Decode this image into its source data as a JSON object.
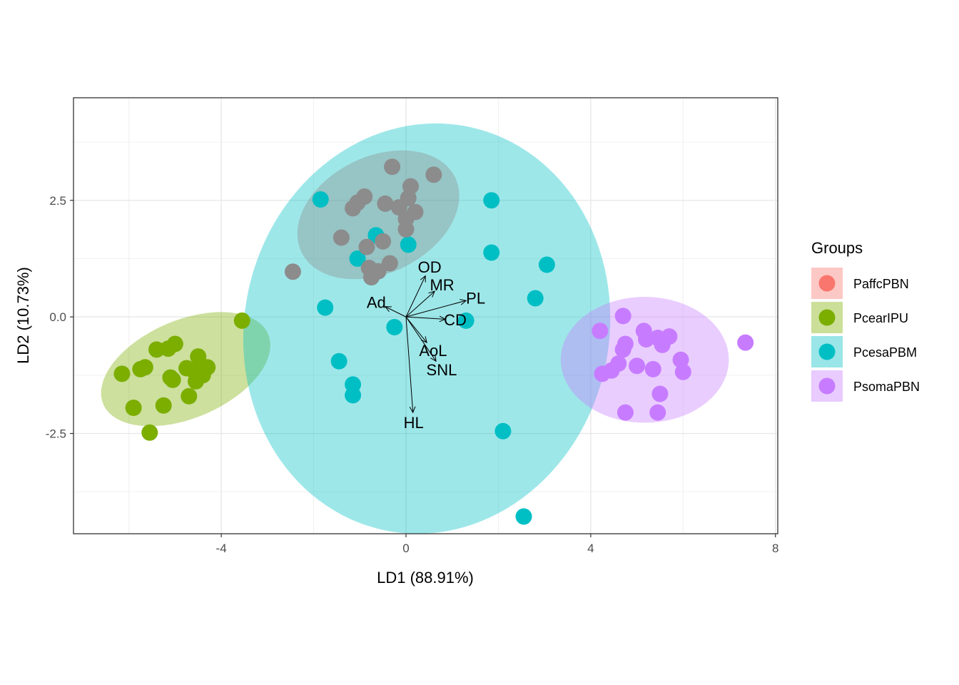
{
  "chart_data": {
    "type": "scatter",
    "title": "",
    "xlabel": "LD1 (88.91%)",
    "ylabel": "LD2 (10.73%)",
    "xlim": [
      -7.2,
      8.05
    ],
    "ylim": [
      -4.65,
      4.7
    ],
    "x_ticks": [
      -4,
      0,
      4,
      8
    ],
    "y_ticks": [
      -2.5,
      0.0,
      2.5
    ],
    "x_tick_labels": [
      "-4",
      "0",
      "4",
      "8"
    ],
    "y_tick_labels": [
      "-2.5",
      "0.0",
      "2.5"
    ],
    "grid": true,
    "legend_position": "right",
    "legend_title": "Groups",
    "series": [
      {
        "name": "PaffcPBN",
        "color": "#F8766D",
        "points": [],
        "ellipse": null
      },
      {
        "name": "PcearIPU",
        "color": "#7CAE00",
        "points": [
          [
            -6.15,
            -1.22
          ],
          [
            -5.9,
            -1.95
          ],
          [
            -5.75,
            -1.12
          ],
          [
            -5.65,
            -1.08
          ],
          [
            -5.55,
            -2.48
          ],
          [
            -5.4,
            -0.7
          ],
          [
            -5.25,
            -1.9
          ],
          [
            -5.15,
            -0.68
          ],
          [
            -5.1,
            -1.3
          ],
          [
            -5.05,
            -1.35
          ],
          [
            -5.0,
            -0.58
          ],
          [
            -4.75,
            -1.1
          ],
          [
            -4.7,
            -1.7
          ],
          [
            -4.6,
            -1.15
          ],
          [
            -4.55,
            -1.38
          ],
          [
            -4.5,
            -0.85
          ],
          [
            -4.4,
            -1.25
          ],
          [
            -4.3,
            -1.08
          ],
          [
            -3.55,
            -0.08
          ]
        ],
        "ellipse": {
          "cx": -4.77,
          "cy": -1.12,
          "rx": 1.94,
          "ry": 1.05,
          "angle_deg": 23
        }
      },
      {
        "name": "PcesaPBM",
        "color": "#00BFC4",
        "points": [
          [
            -1.85,
            2.52
          ],
          [
            -1.75,
            0.2
          ],
          [
            -1.45,
            -0.95
          ],
          [
            -1.15,
            -1.45
          ],
          [
            -1.15,
            -1.68
          ],
          [
            -1.05,
            1.25
          ],
          [
            -0.65,
            1.75
          ],
          [
            -0.25,
            -0.22
          ],
          [
            0.05,
            1.55
          ],
          [
            1.3,
            -0.08
          ],
          [
            1.85,
            1.38
          ],
          [
            1.85,
            2.5
          ],
          [
            2.1,
            -2.45
          ],
          [
            2.55,
            -4.28
          ],
          [
            2.8,
            0.4
          ],
          [
            3.05,
            1.12
          ]
        ],
        "ellipse": {
          "cx": 0.45,
          "cy": -0.25,
          "rx": 3.95,
          "ry": 4.42,
          "angle_deg": -12
        }
      },
      {
        "name": "PsomaPBN",
        "color": "#C77CFF",
        "points": [
          [
            4.2,
            -0.3
          ],
          [
            4.25,
            -1.22
          ],
          [
            4.45,
            -1.15
          ],
          [
            4.6,
            -1.0
          ],
          [
            4.7,
            -0.7
          ],
          [
            4.7,
            0.02
          ],
          [
            4.75,
            -2.05
          ],
          [
            4.75,
            -0.58
          ],
          [
            5.0,
            -1.05
          ],
          [
            5.15,
            -0.3
          ],
          [
            5.2,
            -0.48
          ],
          [
            5.35,
            -1.12
          ],
          [
            5.45,
            -0.45
          ],
          [
            5.45,
            -2.05
          ],
          [
            5.5,
            -1.65
          ],
          [
            5.55,
            -0.6
          ],
          [
            5.7,
            -0.42
          ],
          [
            5.95,
            -0.92
          ],
          [
            6.0,
            -1.18
          ],
          [
            7.35,
            -0.55
          ]
        ],
        "ellipse": {
          "cx": 5.17,
          "cy": -0.92,
          "rx": 1.82,
          "ry": 1.35,
          "angle_deg": 0
        }
      },
      {
        "name": "",
        "color": "#8c8c8c",
        "points": [
          [
            -2.45,
            0.97
          ],
          [
            -1.4,
            1.7
          ],
          [
            -1.15,
            2.33
          ],
          [
            -1.05,
            2.45
          ],
          [
            -0.9,
            2.58
          ],
          [
            -0.85,
            1.5
          ],
          [
            -0.8,
            1.05
          ],
          [
            -0.75,
            0.85
          ],
          [
            -0.6,
            0.98
          ],
          [
            -0.5,
            1.62
          ],
          [
            -0.45,
            2.43
          ],
          [
            -0.35,
            1.15
          ],
          [
            -0.3,
            3.22
          ],
          [
            -0.15,
            2.35
          ],
          [
            0.0,
            2.1
          ],
          [
            0.0,
            1.88
          ],
          [
            0.05,
            2.55
          ],
          [
            0.1,
            2.8
          ],
          [
            0.2,
            2.25
          ],
          [
            0.6,
            3.05
          ]
        ],
        "ellipse": {
          "cx": -0.6,
          "cy": 2.19,
          "rx": 1.85,
          "ry": 1.25,
          "angle_deg": 26
        }
      }
    ],
    "arrows": [
      {
        "label": "OD",
        "x": 0.42,
        "y": 0.88
      },
      {
        "label": "MR",
        "x": 0.62,
        "y": 0.55
      },
      {
        "label": "PL",
        "x": 1.3,
        "y": 0.35
      },
      {
        "label": "Ad",
        "x": -0.45,
        "y": 0.22
      },
      {
        "label": "CD",
        "x": 0.85,
        "y": -0.05
      },
      {
        "label": "AoL",
        "x": 0.45,
        "y": -0.55
      },
      {
        "label": "SNL",
        "x": 0.65,
        "y": -0.95
      },
      {
        "label": "HL",
        "x": 0.15,
        "y": -2.05
      }
    ],
    "label_offsets_note": ""
  }
}
